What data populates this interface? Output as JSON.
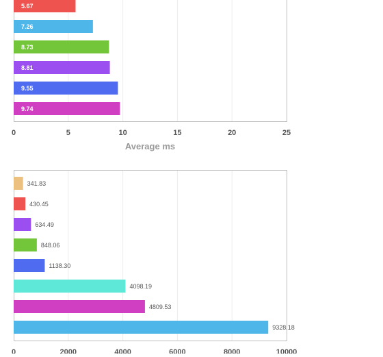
{
  "chart_data": [
    {
      "type": "bar",
      "orientation": "horizontal",
      "values": [
        5.67,
        7.26,
        8.73,
        8.81,
        9.55,
        9.74
      ],
      "value_labels": [
        "5.67",
        "7.26",
        "8.73",
        "8.81",
        "9.55",
        "9.74"
      ],
      "colors": [
        "#ef5350",
        "#4fb6ea",
        "#73c63a",
        "#9b4ff0",
        "#4f6cf0",
        "#d03ec2"
      ],
      "xlabel": "Average ms",
      "xlim": [
        0,
        25
      ],
      "ticks": [
        "0",
        "5",
        "10",
        "15",
        "20",
        "25"
      ],
      "grid": true,
      "labels_inside": true
    },
    {
      "type": "bar",
      "orientation": "horizontal",
      "values": [
        341.83,
        430.45,
        634.49,
        848.06,
        1138.3,
        4098.19,
        4809.53,
        9328.18
      ],
      "value_labels": [
        "341.83",
        "430.45",
        "634.49",
        "848.06",
        "1138.30",
        "4098.19",
        "4809.53",
        "9328.18"
      ],
      "colors": [
        "#ecc07e",
        "#ef5350",
        "#9b4ff0",
        "#73c63a",
        "#4f6cf0",
        "#5ee8d8",
        "#d03ec2",
        "#4fb6ea"
      ],
      "xlabel": "",
      "xlim": [
        0,
        10000
      ],
      "ticks": [
        "0",
        "2000",
        "4000",
        "6000",
        "8000",
        "10000"
      ],
      "grid": true,
      "labels_inside": false
    }
  ]
}
